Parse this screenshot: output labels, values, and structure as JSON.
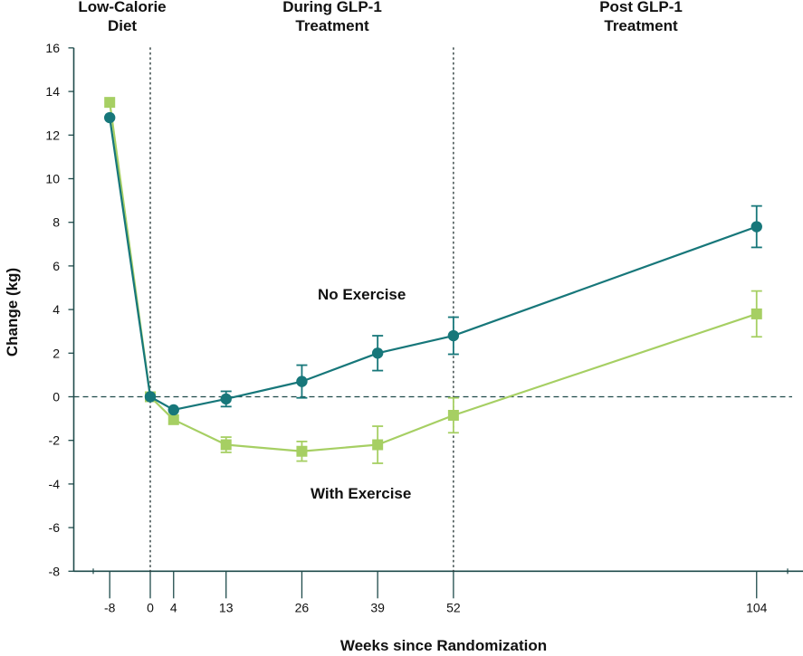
{
  "chart_data": {
    "type": "line",
    "xlabel": "Weeks since Randomization",
    "ylabel": "Change (kg)",
    "x": [
      -8,
      0,
      4,
      13,
      26,
      39,
      52,
      104
    ],
    "xticks": [
      "-8",
      "0",
      "4",
      "13",
      "26",
      "39",
      "52",
      "104"
    ],
    "yticks": [
      "16",
      "14",
      "12",
      "10",
      "8",
      "6",
      "4",
      "2",
      "0",
      "-2",
      "-4",
      "-6",
      "-8"
    ],
    "ylim": [
      -8,
      16
    ],
    "phases": [
      {
        "line1": "Low-Calorie",
        "line2": "Diet"
      },
      {
        "line1": "During GLP-1",
        "line2": "Treatment"
      },
      {
        "line1": "Post GLP-1",
        "line2": "Treatment"
      }
    ],
    "phase_boundaries": [
      0,
      52
    ],
    "reference_line_y": 0,
    "series": [
      {
        "name": "No Exercise",
        "marker": "circle",
        "color": "#17777a",
        "values": [
          12.8,
          0.0,
          -0.6,
          -0.1,
          0.7,
          2.0,
          2.8,
          7.8
        ],
        "error": [
          0,
          0,
          0,
          0.35,
          0.75,
          0.8,
          0.85,
          0.95
        ]
      },
      {
        "name": "With Exercise",
        "marker": "square",
        "color": "#a6cf63",
        "values": [
          13.5,
          0.0,
          -1.05,
          -2.2,
          -2.5,
          -2.2,
          -0.85,
          3.8
        ],
        "error": [
          0,
          0,
          0,
          0.35,
          0.45,
          0.85,
          0.8,
          1.05
        ]
      }
    ]
  }
}
